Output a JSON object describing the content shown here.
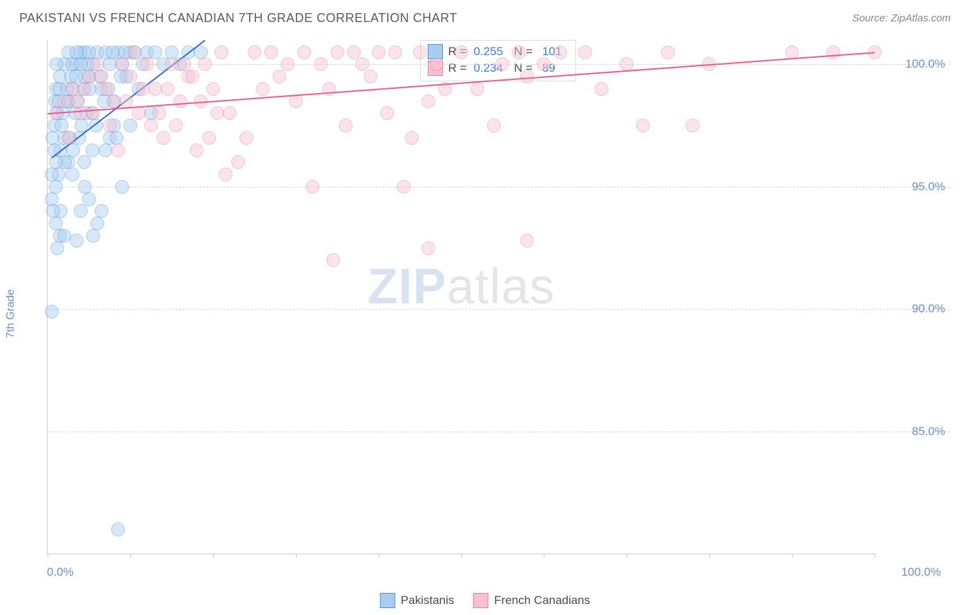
{
  "title": "PAKISTANI VS FRENCH CANADIAN 7TH GRADE CORRELATION CHART",
  "source": "Source: ZipAtlas.com",
  "y_axis_label": "7th Grade",
  "watermark_part1": "ZIP",
  "watermark_part2": "atlas",
  "chart": {
    "type": "scatter",
    "xlim": [
      0,
      100
    ],
    "ylim": [
      80,
      101
    ],
    "x_tick_positions": [
      0,
      10,
      20,
      30,
      40,
      50,
      60,
      70,
      80,
      90,
      100
    ],
    "y_gridlines": [
      85,
      90,
      95,
      100
    ],
    "x_label_min": "0.0%",
    "x_label_max": "100.0%",
    "y_tick_labels": {
      "85": "85.0%",
      "90": "90.0%",
      "95": "95.0%",
      "100": "100.0%"
    },
    "background_color": "#ffffff",
    "grid_color": "#d5d5d5",
    "axis_color": "#cccccc",
    "label_color": "#6b8fc7",
    "title_color": "#5a5a5a",
    "title_fontsize": 18,
    "label_fontsize": 16,
    "tick_fontsize": 17,
    "marker_radius": 10,
    "marker_opacity": 0.45,
    "series": [
      {
        "name": "Pakistanis",
        "fill_color": "#a8cdf0",
        "stroke_color": "#4f8fd6",
        "trend_color": "#2e6fc7",
        "R": "0.255",
        "N": "101",
        "trend": {
          "x1": 0.5,
          "y1": 96.2,
          "x2": 19,
          "y2": 101
        },
        "points": [
          [
            0.5,
            89.9
          ],
          [
            1.0,
            95.0
          ],
          [
            1.5,
            96.5
          ],
          [
            2.0,
            97.0
          ],
          [
            0.8,
            97.5
          ],
          [
            1.2,
            98.0
          ],
          [
            2.5,
            98.5
          ],
          [
            3.0,
            99.0
          ],
          [
            3.5,
            100.0
          ],
          [
            4.0,
            100.5
          ],
          [
            4.5,
            100.5
          ],
          [
            5.0,
            99.5
          ],
          [
            5.5,
            100.0
          ],
          [
            6.0,
            100.5
          ],
          [
            6.5,
            99.0
          ],
          [
            7.0,
            100.5
          ],
          [
            7.5,
            100.0
          ],
          [
            8.0,
            98.5
          ],
          [
            8.5,
            100.5
          ],
          [
            9.0,
            100.0
          ],
          [
            9.5,
            99.5
          ],
          [
            10.0,
            100.5
          ],
          [
            10.5,
            100.5
          ],
          [
            11.0,
            99.0
          ],
          [
            11.5,
            100.0
          ],
          [
            12.0,
            100.5
          ],
          [
            12.5,
            98.0
          ],
          [
            13.0,
            100.5
          ],
          [
            14.0,
            100.0
          ],
          [
            15.0,
            100.5
          ],
          [
            16.0,
            100.0
          ],
          [
            17.0,
            100.5
          ],
          [
            18.5,
            100.5
          ],
          [
            1.0,
            99.0
          ],
          [
            1.5,
            99.5
          ],
          [
            2.0,
            100.0
          ],
          [
            2.5,
            96.0
          ],
          [
            3.0,
            95.5
          ],
          [
            0.5,
            94.5
          ],
          [
            1.0,
            93.5
          ],
          [
            1.5,
            93.0
          ],
          [
            2.0,
            93.0
          ],
          [
            3.5,
            92.8
          ],
          [
            4.0,
            94.0
          ],
          [
            4.5,
            95.0
          ],
          [
            5.0,
            94.5
          ],
          [
            5.5,
            93.0
          ],
          [
            6.0,
            93.5
          ],
          [
            6.5,
            94.0
          ],
          [
            7.0,
            96.5
          ],
          [
            7.5,
            97.0
          ],
          [
            8.0,
            97.5
          ],
          [
            0.8,
            96.5
          ],
          [
            1.3,
            95.5
          ],
          [
            1.8,
            98.0
          ],
          [
            2.3,
            99.0
          ],
          [
            2.8,
            99.5
          ],
          [
            3.3,
            98.0
          ],
          [
            3.8,
            97.0
          ],
          [
            4.3,
            99.0
          ],
          [
            4.8,
            100.0
          ],
          [
            5.3,
            98.0
          ],
          [
            5.8,
            97.5
          ],
          [
            6.3,
            99.5
          ],
          [
            6.8,
            98.5
          ],
          [
            7.3,
            99.0
          ],
          [
            7.8,
            100.5
          ],
          [
            8.3,
            97.0
          ],
          [
            8.8,
            99.5
          ],
          [
            9.3,
            100.5
          ],
          [
            2.5,
            100.5
          ],
          [
            3.0,
            100.0
          ],
          [
            3.5,
            100.5
          ],
          [
            4.0,
            100.0
          ],
          [
            4.5,
            99.5
          ],
          [
            5.0,
            100.5
          ],
          [
            0.6,
            97.0
          ],
          [
            0.9,
            98.5
          ],
          [
            1.1,
            100.0
          ],
          [
            1.4,
            99.0
          ],
          [
            1.7,
            97.5
          ],
          [
            2.1,
            96.0
          ],
          [
            2.4,
            98.5
          ],
          [
            2.7,
            97.0
          ],
          [
            3.1,
            96.5
          ],
          [
            3.4,
            99.5
          ],
          [
            3.7,
            98.5
          ],
          [
            4.1,
            97.5
          ],
          [
            4.4,
            96.0
          ],
          [
            4.7,
            98.0
          ],
          [
            5.1,
            99.0
          ],
          [
            5.4,
            96.5
          ],
          [
            1.2,
            92.5
          ],
          [
            1.6,
            94.0
          ],
          [
            10.0,
            97.5
          ],
          [
            9.0,
            95.0
          ],
          [
            8.5,
            81.0
          ],
          [
            0.5,
            95.5
          ],
          [
            0.7,
            94.0
          ],
          [
            1.0,
            96.0
          ],
          [
            1.3,
            98.5
          ]
        ]
      },
      {
        "name": "French Canadians",
        "fill_color": "#f5c2d1",
        "stroke_color": "#e57fa3",
        "trend_color": "#e85d8f",
        "R": "0.234",
        "N": "89",
        "trend": {
          "x1": 0,
          "y1": 98.0,
          "x2": 100,
          "y2": 100.5
        },
        "points": [
          [
            1.0,
            98.0
          ],
          [
            2.0,
            98.5
          ],
          [
            3.0,
            99.0
          ],
          [
            4.0,
            98.0
          ],
          [
            5.0,
            99.5
          ],
          [
            6.0,
            100.0
          ],
          [
            7.0,
            99.0
          ],
          [
            8.0,
            98.5
          ],
          [
            9.0,
            100.0
          ],
          [
            10.0,
            99.5
          ],
          [
            11.0,
            98.0
          ],
          [
            12.0,
            100.0
          ],
          [
            13.0,
            99.0
          ],
          [
            14.0,
            97.0
          ],
          [
            15.0,
            100.0
          ],
          [
            16.0,
            98.5
          ],
          [
            17.0,
            99.5
          ],
          [
            18.0,
            96.5
          ],
          [
            19.0,
            100.0
          ],
          [
            20.0,
            99.0
          ],
          [
            21.0,
            100.5
          ],
          [
            22.0,
            98.0
          ],
          [
            23.0,
            96.0
          ],
          [
            24.0,
            97.0
          ],
          [
            25.0,
            100.5
          ],
          [
            26.0,
            99.0
          ],
          [
            27.0,
            100.5
          ],
          [
            28.0,
            99.5
          ],
          [
            29.0,
            100.0
          ],
          [
            30.0,
            98.5
          ],
          [
            31.0,
            100.5
          ],
          [
            32.0,
            95.0
          ],
          [
            33.0,
            100.0
          ],
          [
            34.0,
            99.0
          ],
          [
            35.0,
            100.5
          ],
          [
            36.0,
            97.5
          ],
          [
            37.0,
            100.5
          ],
          [
            38.0,
            100.0
          ],
          [
            39.0,
            99.5
          ],
          [
            40.0,
            100.5
          ],
          [
            41.0,
            98.0
          ],
          [
            42.0,
            100.5
          ],
          [
            43.0,
            95.0
          ],
          [
            44.0,
            97.0
          ],
          [
            45.0,
            100.5
          ],
          [
            46.0,
            98.5
          ],
          [
            47.0,
            100.0
          ],
          [
            48.0,
            99.0
          ],
          [
            50.0,
            100.5
          ],
          [
            52.0,
            99.0
          ],
          [
            54.0,
            97.5
          ],
          [
            55.0,
            100.0
          ],
          [
            57.0,
            100.5
          ],
          [
            58.0,
            99.5
          ],
          [
            60.0,
            100.0
          ],
          [
            62.0,
            100.5
          ],
          [
            65.0,
            100.5
          ],
          [
            67.0,
            99.0
          ],
          [
            70.0,
            100.0
          ],
          [
            72.0,
            97.5
          ],
          [
            75.0,
            100.5
          ],
          [
            78.0,
            97.5
          ],
          [
            80.0,
            100.0
          ],
          [
            90.0,
            100.5
          ],
          [
            95.0,
            100.5
          ],
          [
            100.0,
            100.5
          ],
          [
            34.5,
            92.0
          ],
          [
            46.0,
            92.5
          ],
          [
            2.5,
            97.0
          ],
          [
            3.5,
            98.5
          ],
          [
            4.5,
            99.0
          ],
          [
            5.5,
            98.0
          ],
          [
            6.5,
            99.5
          ],
          [
            7.5,
            97.5
          ],
          [
            8.5,
            96.5
          ],
          [
            9.5,
            98.5
          ],
          [
            10.5,
            100.5
          ],
          [
            11.5,
            99.0
          ],
          [
            12.5,
            97.5
          ],
          [
            13.5,
            98.0
          ],
          [
            14.5,
            99.0
          ],
          [
            15.5,
            97.5
          ],
          [
            16.5,
            100.0
          ],
          [
            17.5,
            99.5
          ],
          [
            18.5,
            98.5
          ],
          [
            19.5,
            97.0
          ],
          [
            20.5,
            98.0
          ],
          [
            21.5,
            95.5
          ],
          [
            58.0,
            92.8
          ]
        ]
      }
    ]
  },
  "legend_box": {
    "r_prefix": "R =",
    "n_prefix": "N ="
  },
  "bottom_legend": [
    {
      "label": "Pakistanis",
      "fill": "#a8cdf0",
      "stroke": "#4f8fd6"
    },
    {
      "label": "French Canadians",
      "fill": "#f5c2d1",
      "stroke": "#e57fa3"
    }
  ]
}
